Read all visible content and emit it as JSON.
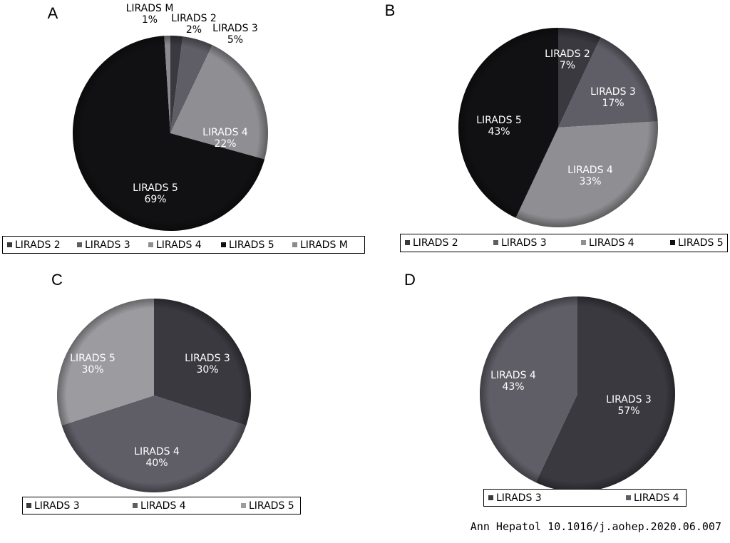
{
  "citation": "Ann Hepatol 10.1016/j.aohep.2020.06.007",
  "chart_data": [
    {
      "panel": "A",
      "type": "pie",
      "categories": [
        "LIRADS 2",
        "LIRADS 3",
        "LIRADS 4",
        "LIRADS 5",
        "LIRADS M"
      ],
      "values": [
        2,
        5,
        22,
        69,
        1
      ],
      "labels": [
        "2%",
        "5%",
        "22%",
        "69%",
        "1%"
      ],
      "colors": [
        "#3a3940",
        "#5f5e67",
        "#8f8f93",
        "#111113",
        "#8a8a90"
      ],
      "legend": [
        "LIRADS 2",
        "LIRADS 3",
        "LIRADS 4",
        "LIRADS 5",
        "LIRADS M"
      ],
      "legend_position": "bottom"
    },
    {
      "panel": "B",
      "type": "pie",
      "categories": [
        "LIRADS 2",
        "LIRADS 3",
        "LIRADS 4",
        "LIRADS 5"
      ],
      "values": [
        7,
        17,
        33,
        43
      ],
      "labels": [
        "7%",
        "17%",
        "33%",
        "43%"
      ],
      "colors": [
        "#3a3940",
        "#5f5e67",
        "#8f8f93",
        "#111113"
      ],
      "legend": [
        "LIRADS 2",
        "LIRADS 3",
        "LIRADS 4",
        "LIRADS 5"
      ],
      "legend_position": "bottom"
    },
    {
      "panel": "C",
      "type": "pie",
      "categories": [
        "LIRADS 3",
        "LIRADS 4",
        "LIRADS 5"
      ],
      "values": [
        30,
        40,
        30
      ],
      "labels": [
        "30%",
        "40%",
        "30%"
      ],
      "colors": [
        "#3a3940",
        "#5f5e67",
        "#9c9ca0"
      ],
      "legend": [
        "LIRADS 3",
        "LIRADS 4",
        "LIRADS 5"
      ],
      "legend_position": "bottom"
    },
    {
      "panel": "D",
      "type": "pie",
      "categories": [
        "LIRADS 3",
        "LIRADS 4"
      ],
      "values": [
        57,
        43
      ],
      "labels": [
        "57%",
        "43%"
      ],
      "colors": [
        "#3a3940",
        "#5f5e67"
      ],
      "legend": [
        "LIRADS 3",
        "LIRADS 4"
      ],
      "legend_position": "bottom"
    }
  ]
}
